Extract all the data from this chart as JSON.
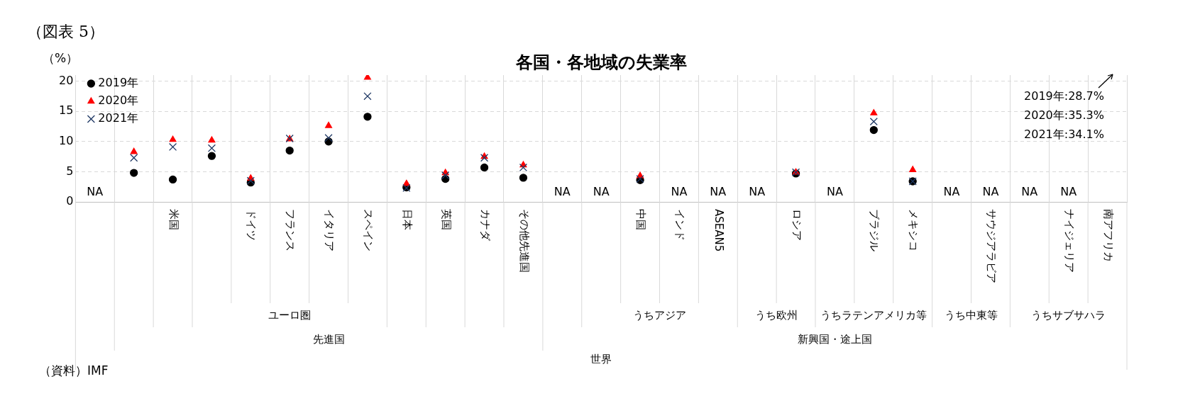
{
  "chart_data": {
    "type": "scatter",
    "title": "各国・各地域の失業率",
    "ylabel": "（%）",
    "categories": [
      null,
      null,
      "米国",
      null,
      "ドイツ",
      "フランス",
      "イタリア",
      "スペイン",
      "日本",
      "英国",
      "カナダ",
      "その他先進国",
      null,
      null,
      "中国",
      "インド",
      "ASEAN5",
      null,
      "ロシア",
      null,
      "ブラジル",
      "メキシコ",
      null,
      "サウジアラビア",
      null,
      "ナイジェリア",
      "南アフリカ"
    ],
    "series": [
      {
        "name": "2019年",
        "color": "#000000",
        "marker": "circle",
        "values": [
          null,
          4.8,
          3.7,
          7.6,
          3.2,
          8.5,
          10.0,
          14.1,
          2.4,
          3.8,
          5.7,
          4.0,
          null,
          null,
          3.6,
          null,
          null,
          null,
          4.7,
          null,
          11.9,
          3.4,
          null,
          null,
          null,
          null,
          null
        ],
        "value_labels": [
          "NA",
          null,
          null,
          null,
          null,
          null,
          null,
          null,
          null,
          null,
          null,
          null,
          "NA",
          "NA",
          null,
          "NA",
          "NA",
          "NA",
          null,
          "NA",
          null,
          null,
          "NA",
          "NA",
          "NA",
          "NA",
          null
        ]
      },
      {
        "name": "2020年",
        "color": "#ff0000",
        "marker": "triangle",
        "values": [
          null,
          8.3,
          10.3,
          10.2,
          3.9,
          10.4,
          12.6,
          20.6,
          3.0,
          4.8,
          7.5,
          6.1,
          null,
          null,
          4.3,
          null,
          null,
          null,
          4.9,
          null,
          14.7,
          5.3,
          null,
          null,
          null,
          null,
          null
        ]
      },
      {
        "name": "2021年",
        "color": "#1f3864",
        "marker": "cross",
        "values": [
          null,
          7.3,
          9.1,
          8.9,
          3.5,
          10.5,
          10.6,
          17.5,
          2.3,
          4.4,
          7.3,
          5.7,
          null,
          null,
          3.8,
          null,
          null,
          null,
          4.9,
          null,
          13.3,
          3.4,
          null,
          null,
          null,
          null,
          null
        ]
      }
    ],
    "ylim": [
      0,
      21
    ],
    "yticks": [
      0,
      5,
      10,
      15,
      20
    ],
    "grid": true,
    "legend": "top left",
    "annotations": [
      "（図表 5）",
      "（資料）IMF",
      "2019年:28.7%",
      "2020年:35.3%",
      "2021年:34.1%",
      "ユーロ圏",
      "うちアジア",
      "うち欧州",
      "うちラテンアメリカ等",
      "うち中東等",
      "うちサブサハラ",
      "先進国",
      "新興国・途上国",
      "世界"
    ]
  }
}
